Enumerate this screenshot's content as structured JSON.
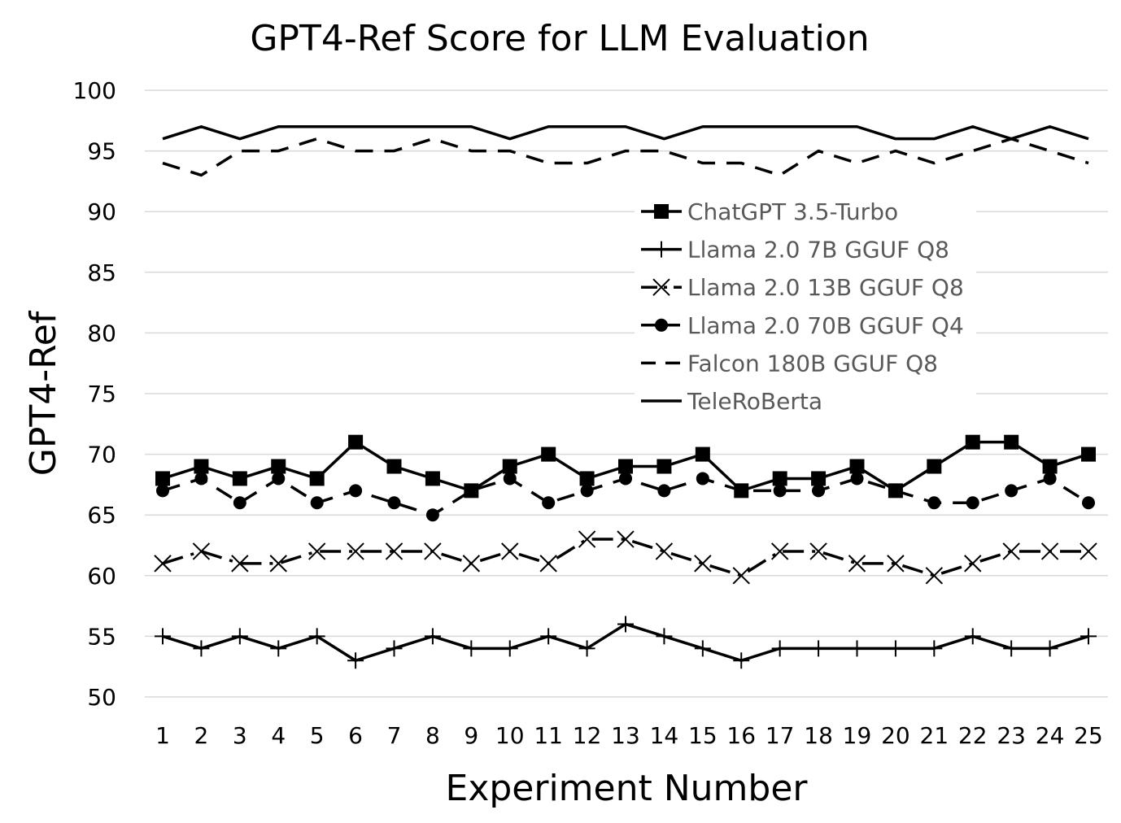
{
  "chart_data": {
    "type": "line",
    "title": "GPT4-Ref Score for LLM Evaluation",
    "xlabel": "Experiment Number",
    "ylabel": "GPT4-Ref",
    "ylim": [
      50,
      100
    ],
    "yticks": [
      50,
      55,
      60,
      65,
      70,
      75,
      80,
      85,
      90,
      95,
      100
    ],
    "grid": true,
    "legend_position": "center-right",
    "categories": [
      "1",
      "2",
      "3",
      "4",
      "5",
      "6",
      "7",
      "8",
      "9",
      "10",
      "11",
      "12",
      "13",
      "14",
      "15",
      "16",
      "17",
      "18",
      "19",
      "20",
      "21",
      "22",
      "23",
      "24",
      "25"
    ],
    "series": [
      {
        "name": "ChatGPT 3.5-Turbo",
        "style": "solid",
        "marker": "square",
        "values": [
          68,
          69,
          68,
          69,
          68,
          71,
          69,
          68,
          67,
          69,
          70,
          68,
          69,
          69,
          70,
          67,
          68,
          68,
          69,
          67,
          69,
          71,
          71,
          69,
          70
        ]
      },
      {
        "name": "Llama 2.0 7B GGUF Q8",
        "style": "solid",
        "marker": "plus",
        "values": [
          55,
          54,
          55,
          54,
          55,
          53,
          54,
          55,
          54,
          54,
          55,
          54,
          56,
          55,
          54,
          53,
          54,
          54,
          54,
          54,
          54,
          55,
          54,
          54,
          55
        ]
      },
      {
        "name": "Llama 2.0 13B GGUF Q8",
        "style": "dashdot",
        "marker": "x",
        "values": [
          61,
          62,
          61,
          61,
          62,
          62,
          62,
          62,
          61,
          62,
          61,
          63,
          63,
          62,
          61,
          60,
          62,
          62,
          61,
          61,
          60,
          61,
          62,
          62,
          62
        ]
      },
      {
        "name": "Llama 2.0 70B GGUF Q4",
        "style": "dashed",
        "marker": "circle",
        "values": [
          67,
          68,
          66,
          68,
          66,
          67,
          66,
          65,
          67,
          68,
          66,
          67,
          68,
          67,
          68,
          67,
          67,
          67,
          68,
          67,
          66,
          66,
          67,
          68,
          66
        ]
      },
      {
        "name": "Falcon 180B GGUF Q8",
        "style": "dashed",
        "marker": "none",
        "values": [
          94,
          93,
          95,
          95,
          96,
          95,
          95,
          96,
          95,
          95,
          94,
          94,
          95,
          95,
          94,
          94,
          93,
          95,
          94,
          95,
          94,
          95,
          96,
          95,
          94
        ]
      },
      {
        "name": "TeleRoBerta",
        "style": "solid",
        "marker": "none",
        "values": [
          96,
          97,
          96,
          97,
          97,
          97,
          97,
          97,
          97,
          96,
          97,
          97,
          97,
          96,
          97,
          97,
          97,
          97,
          97,
          96,
          96,
          97,
          96,
          97,
          96
        ]
      }
    ]
  }
}
